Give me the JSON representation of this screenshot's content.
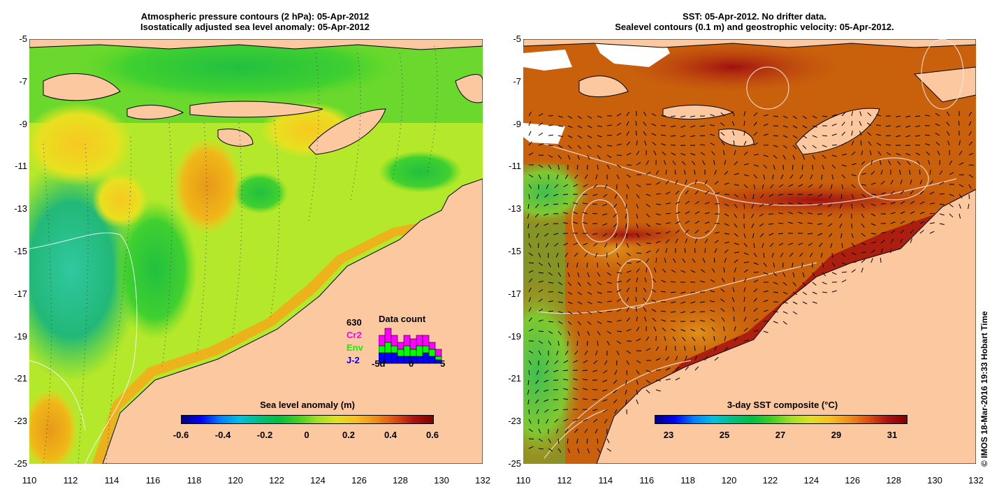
{
  "left_panel": {
    "title_line1": "Atmospheric pressure contours (2 hPa): 05-Apr-2012",
    "title_line2": "Isostatically adjusted sea level anomaly: 05-Apr-2012",
    "colorbar_title": "Sea level anomaly (m)",
    "colorbar_ticks": [
      "-0.6",
      "-0.4",
      "-0.2",
      "0",
      "0.2",
      "0.4",
      "0.6"
    ],
    "colorbar_range": [
      -0.6,
      0.6
    ],
    "data_count": {
      "total": "630",
      "title": "Data count",
      "series": [
        {
          "name": "Cr2",
          "color": "#ff00ff"
        },
        {
          "name": "Env",
          "color": "#00ff00"
        },
        {
          "name": "J-2",
          "color": "#0000ff"
        }
      ],
      "xticks": [
        "-5d",
        "0",
        "5"
      ],
      "bars": [
        {
          "j2": 3,
          "env": 2,
          "cr2": 3
        },
        {
          "j2": 3,
          "env": 3,
          "cr2": 4
        },
        {
          "j2": 3,
          "env": 2,
          "cr2": 3
        },
        {
          "j2": 2,
          "env": 2,
          "cr2": 2
        },
        {
          "j2": 2,
          "env": 3,
          "cr2": 3
        },
        {
          "j2": 2,
          "env": 2,
          "cr2": 3
        },
        {
          "j2": 2,
          "env": 3,
          "cr2": 3
        },
        {
          "j2": 3,
          "env": 2,
          "cr2": 3
        },
        {
          "j2": 2,
          "env": 2,
          "cr2": 2
        },
        {
          "j2": 1,
          "env": 1,
          "cr2": 2
        }
      ]
    }
  },
  "right_panel": {
    "title_line1": "SST: 05-Apr-2012. No drifter data.",
    "title_line2": "Sealevel contours (0.1 m) and geostrophic velocity: 05-Apr-2012.",
    "colorbar_title": "3-day SST composite (°C)",
    "colorbar_ticks": [
      "23",
      "25",
      "27",
      "29",
      "31"
    ],
    "colorbar_range": [
      22.5,
      31.5
    ]
  },
  "axes": {
    "lat_labels": [
      "-5",
      "-7",
      "-9",
      "-11",
      "-13",
      "-15",
      "-17",
      "-19",
      "-21",
      "-23",
      "-25"
    ],
    "lon_labels": [
      "110",
      "112",
      "114",
      "116",
      "118",
      "120",
      "122",
      "124",
      "126",
      "128",
      "130",
      "132"
    ]
  },
  "copyright": "© IMOS 18-Mar-2016 19:33 Hobart Time",
  "colors": {
    "land": "#fcc8a0",
    "ocean_left": "#aee82a",
    "ocean_right": "#c85a0a"
  }
}
